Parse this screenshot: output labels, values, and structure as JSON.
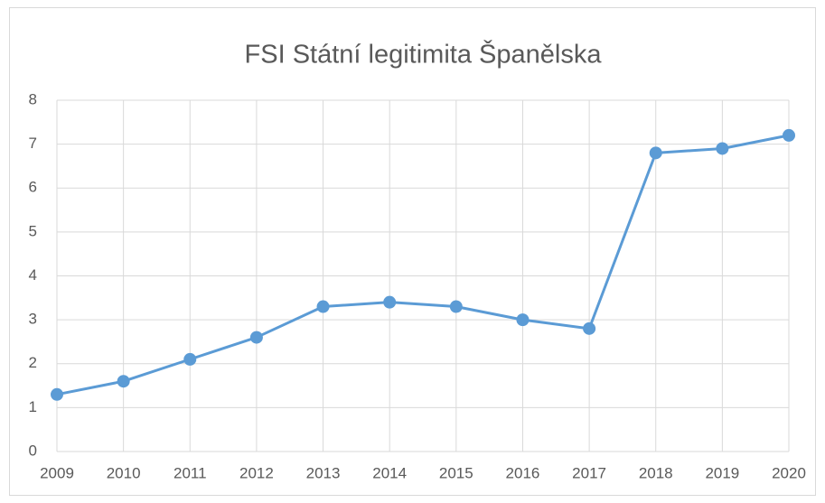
{
  "chart_data": {
    "type": "line",
    "title": "FSI Státní legitimita Španělska",
    "categories": [
      "2009",
      "2010",
      "2011",
      "2012",
      "2013",
      "2014",
      "2015",
      "2016",
      "2017",
      "2018",
      "2019",
      "2020"
    ],
    "series": [
      {
        "name": "FSI Státní legitimita Španělska",
        "color": "#5b9bd5",
        "values": [
          1.3,
          1.6,
          2.1,
          2.6,
          3.3,
          3.4,
          3.3,
          3.0,
          2.8,
          6.8,
          6.9,
          7.2
        ]
      }
    ],
    "ylim": [
      0,
      8
    ],
    "yticks": [
      0,
      1,
      2,
      3,
      4,
      5,
      6,
      7,
      8
    ],
    "grid": true,
    "legend": false
  }
}
